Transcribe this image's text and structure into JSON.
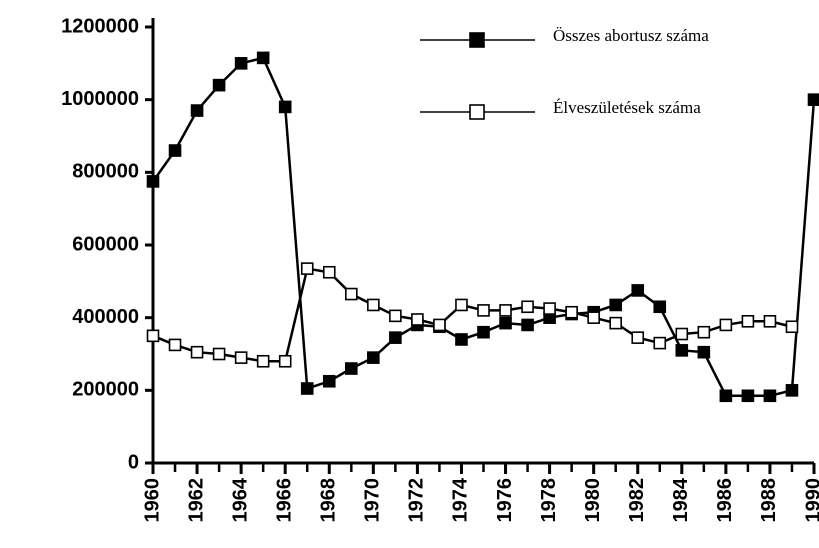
{
  "chart_data": {
    "type": "line",
    "x": [
      1960,
      1961,
      1962,
      1963,
      1964,
      1965,
      1966,
      1967,
      1968,
      1969,
      1970,
      1971,
      1972,
      1973,
      1974,
      1975,
      1976,
      1977,
      1978,
      1979,
      1980,
      1981,
      1982,
      1983,
      1984,
      1985,
      1986,
      1987,
      1988,
      1989,
      1990
    ],
    "series": [
      {
        "name": "Összes abortusz száma",
        "color": "#000000",
        "marker": "filled",
        "values": [
          775000,
          860000,
          970000,
          1040000,
          1100000,
          1115000,
          980000,
          205000,
          225000,
          260000,
          290000,
          345000,
          380000,
          375000,
          340000,
          360000,
          385000,
          380000,
          400000,
          410000,
          415000,
          435000,
          475000,
          430000,
          310000,
          305000,
          185000,
          185000,
          185000,
          200000,
          1000000
        ]
      },
      {
        "name": "Élveszületések száma",
        "color": "#000000",
        "marker": "open",
        "values": [
          350000,
          325000,
          305000,
          300000,
          290000,
          280000,
          280000,
          535000,
          525000,
          465000,
          435000,
          405000,
          395000,
          380000,
          435000,
          420000,
          420000,
          430000,
          425000,
          415000,
          400000,
          385000,
          345000,
          330000,
          355000,
          360000,
          380000,
          390000,
          390000,
          375000,
          null
        ]
      }
    ],
    "xlim": [
      1960,
      1990
    ],
    "xticks": [
      1960,
      1962,
      1964,
      1966,
      1968,
      1970,
      1972,
      1974,
      1976,
      1978,
      1980,
      1982,
      1984,
      1986,
      1988,
      1990
    ],
    "ylim": [
      0,
      1200000
    ],
    "yticks": [
      0,
      200000,
      400000,
      600000,
      800000,
      1000000,
      1200000
    ],
    "grid": false,
    "legend": "upper right"
  }
}
